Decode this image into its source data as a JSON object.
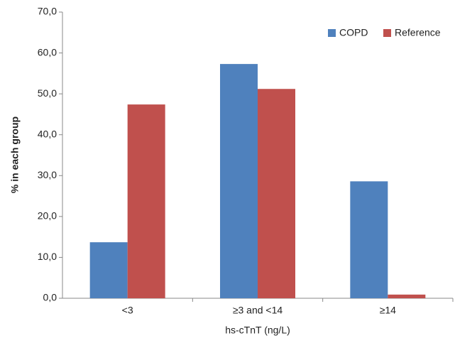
{
  "chart_data": {
    "type": "bar",
    "x_label": "hs-cTnT (ng/L)",
    "y_label": "% in each group",
    "categories": [
      "<3",
      "≥3 and <14",
      "≥14"
    ],
    "series": [
      {
        "name": "COPD",
        "color": "#4f81bd",
        "values": [
          13.7,
          57.3,
          28.6
        ]
      },
      {
        "name": "Reference",
        "color": "#c0504d",
        "values": [
          47.4,
          51.2,
          0.9
        ]
      }
    ],
    "ylim": [
      0,
      70
    ],
    "yticks": [
      {
        "value": 0,
        "label": "0,0"
      },
      {
        "value": 10,
        "label": "10,0"
      },
      {
        "value": 20,
        "label": "20,0"
      },
      {
        "value": 30,
        "label": "30,0"
      },
      {
        "value": 40,
        "label": "40,0"
      },
      {
        "value": 50,
        "label": "50,0"
      },
      {
        "value": 60,
        "label": "60,0"
      },
      {
        "value": 70,
        "label": "70,0"
      }
    ],
    "grid": false,
    "legend": "top-right"
  }
}
